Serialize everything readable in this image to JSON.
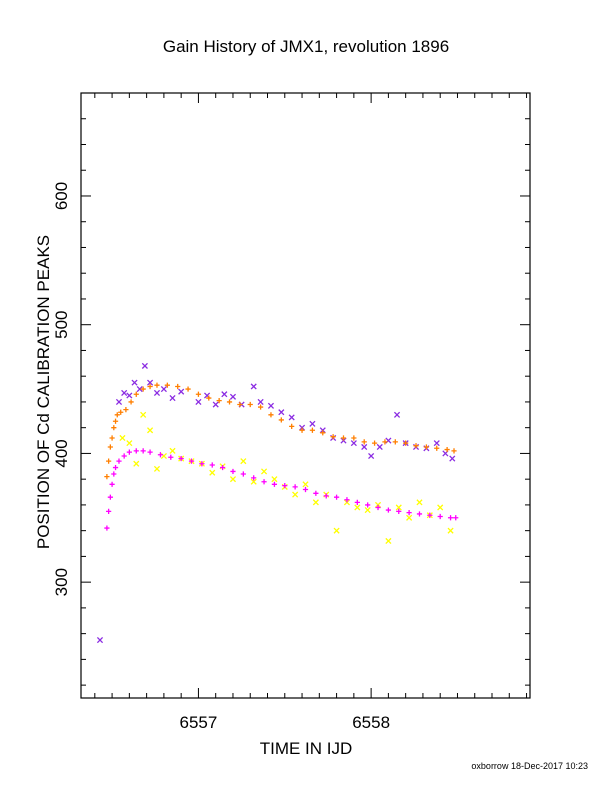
{
  "chart_data": {
    "type": "scatter",
    "title": "Gain History of JMX1, revolution 1896",
    "xlabel": "TIME IN IJD",
    "ylabel": "POSITION OF Cd CALIBRATION PEAKS",
    "xlim": [
      6556.32,
      6558.92
    ],
    "ylim": [
      210,
      680
    ],
    "x_ticks": [
      6557,
      6558
    ],
    "y_ticks": [
      300,
      400,
      500,
      600
    ],
    "grid": false,
    "legend": "none",
    "series": [
      {
        "marker": "x",
        "color": "#8a2be2",
        "points": [
          [
            6556.43,
            255
          ],
          [
            6556.54,
            440
          ],
          [
            6556.57,
            447
          ],
          [
            6556.6,
            445
          ],
          [
            6556.63,
            455
          ],
          [
            6556.66,
            450
          ],
          [
            6556.69,
            468
          ],
          [
            6556.72,
            455
          ],
          [
            6556.76,
            447
          ],
          [
            6556.8,
            450
          ],
          [
            6556.85,
            443
          ],
          [
            6556.9,
            448
          ],
          [
            6557.0,
            440
          ],
          [
            6557.05,
            445
          ],
          [
            6557.1,
            438
          ],
          [
            6557.15,
            446
          ],
          [
            6557.2,
            444
          ],
          [
            6557.25,
            438
          ],
          [
            6557.32,
            452
          ],
          [
            6557.36,
            440
          ],
          [
            6557.42,
            437
          ],
          [
            6557.48,
            432
          ],
          [
            6557.54,
            428
          ],
          [
            6557.6,
            420
          ],
          [
            6557.66,
            423
          ],
          [
            6557.72,
            418
          ],
          [
            6557.78,
            412
          ],
          [
            6557.84,
            410
          ],
          [
            6557.9,
            408
          ],
          [
            6557.96,
            405
          ],
          [
            6558.0,
            398
          ],
          [
            6558.05,
            405
          ],
          [
            6558.1,
            410
          ],
          [
            6558.15,
            430
          ],
          [
            6558.2,
            408
          ],
          [
            6558.26,
            405
          ],
          [
            6558.32,
            404
          ],
          [
            6558.38,
            408
          ],
          [
            6558.43,
            400
          ],
          [
            6558.47,
            396
          ]
        ]
      },
      {
        "marker": "+",
        "color": "#ff7f00",
        "points": [
          [
            6556.47,
            382
          ],
          [
            6556.48,
            394
          ],
          [
            6556.49,
            405
          ],
          [
            6556.5,
            412
          ],
          [
            6556.51,
            420
          ],
          [
            6556.52,
            425
          ],
          [
            6556.53,
            430
          ],
          [
            6556.55,
            432
          ],
          [
            6556.58,
            434
          ],
          [
            6556.61,
            440
          ],
          [
            6556.64,
            446
          ],
          [
            6556.68,
            450
          ],
          [
            6556.72,
            452
          ],
          [
            6556.76,
            453
          ],
          [
            6556.82,
            453
          ],
          [
            6556.88,
            452
          ],
          [
            6556.94,
            450
          ],
          [
            6557.0,
            446
          ],
          [
            6557.06,
            443
          ],
          [
            6557.12,
            441
          ],
          [
            6557.18,
            440
          ],
          [
            6557.24,
            438
          ],
          [
            6557.3,
            438
          ],
          [
            6557.36,
            436
          ],
          [
            6557.42,
            430
          ],
          [
            6557.48,
            426
          ],
          [
            6557.54,
            421
          ],
          [
            6557.6,
            418
          ],
          [
            6557.66,
            418
          ],
          [
            6557.72,
            416
          ],
          [
            6557.78,
            413
          ],
          [
            6557.84,
            412
          ],
          [
            6557.9,
            412
          ],
          [
            6557.96,
            409
          ],
          [
            6558.02,
            408
          ],
          [
            6558.08,
            409
          ],
          [
            6558.14,
            409
          ],
          [
            6558.2,
            408
          ],
          [
            6558.26,
            406
          ],
          [
            6558.32,
            405
          ],
          [
            6558.38,
            404
          ],
          [
            6558.44,
            403
          ],
          [
            6558.48,
            402
          ]
        ]
      },
      {
        "marker": "x",
        "color": "#ffff00",
        "points": [
          [
            6556.56,
            412
          ],
          [
            6556.6,
            408
          ],
          [
            6556.64,
            392
          ],
          [
            6556.68,
            430
          ],
          [
            6556.72,
            418
          ],
          [
            6556.76,
            388
          ],
          [
            6556.8,
            398
          ],
          [
            6556.85,
            402
          ],
          [
            6556.9,
            396
          ],
          [
            6556.96,
            394
          ],
          [
            6557.02,
            392
          ],
          [
            6557.08,
            385
          ],
          [
            6557.14,
            390
          ],
          [
            6557.2,
            380
          ],
          [
            6557.26,
            394
          ],
          [
            6557.32,
            378
          ],
          [
            6557.38,
            386
          ],
          [
            6557.44,
            380
          ],
          [
            6557.5,
            374
          ],
          [
            6557.56,
            368
          ],
          [
            6557.62,
            376
          ],
          [
            6557.68,
            362
          ],
          [
            6557.74,
            368
          ],
          [
            6557.8,
            340
          ],
          [
            6557.86,
            362
          ],
          [
            6557.92,
            358
          ],
          [
            6557.98,
            356
          ],
          [
            6558.04,
            360
          ],
          [
            6558.1,
            332
          ],
          [
            6558.16,
            358
          ],
          [
            6558.22,
            350
          ],
          [
            6558.28,
            362
          ],
          [
            6558.34,
            352
          ],
          [
            6558.4,
            358
          ],
          [
            6558.46,
            340
          ]
        ]
      },
      {
        "marker": "+",
        "color": "#ff00ff",
        "points": [
          [
            6556.47,
            342
          ],
          [
            6556.48,
            355
          ],
          [
            6556.49,
            366
          ],
          [
            6556.5,
            376
          ],
          [
            6556.51,
            384
          ],
          [
            6556.52,
            389
          ],
          [
            6556.54,
            394
          ],
          [
            6556.57,
            398
          ],
          [
            6556.6,
            401
          ],
          [
            6556.64,
            402
          ],
          [
            6556.68,
            402
          ],
          [
            6556.72,
            401
          ],
          [
            6556.78,
            399
          ],
          [
            6556.84,
            397
          ],
          [
            6556.9,
            396
          ],
          [
            6556.96,
            394
          ],
          [
            6557.02,
            392
          ],
          [
            6557.08,
            391
          ],
          [
            6557.14,
            389
          ],
          [
            6557.2,
            386
          ],
          [
            6557.26,
            384
          ],
          [
            6557.32,
            381
          ],
          [
            6557.38,
            378
          ],
          [
            6557.44,
            376
          ],
          [
            6557.5,
            375
          ],
          [
            6557.56,
            374
          ],
          [
            6557.62,
            372
          ],
          [
            6557.68,
            369
          ],
          [
            6557.74,
            367
          ],
          [
            6557.8,
            366
          ],
          [
            6557.86,
            364
          ],
          [
            6557.92,
            362
          ],
          [
            6557.98,
            360
          ],
          [
            6558.04,
            358
          ],
          [
            6558.1,
            356
          ],
          [
            6558.16,
            355
          ],
          [
            6558.22,
            354
          ],
          [
            6558.28,
            353
          ],
          [
            6558.34,
            352
          ],
          [
            6558.4,
            351
          ],
          [
            6558.46,
            350
          ],
          [
            6558.49,
            350
          ]
        ]
      }
    ]
  },
  "footer": {
    "credit": "oxborrow 18-Dec-2017 10:23"
  }
}
